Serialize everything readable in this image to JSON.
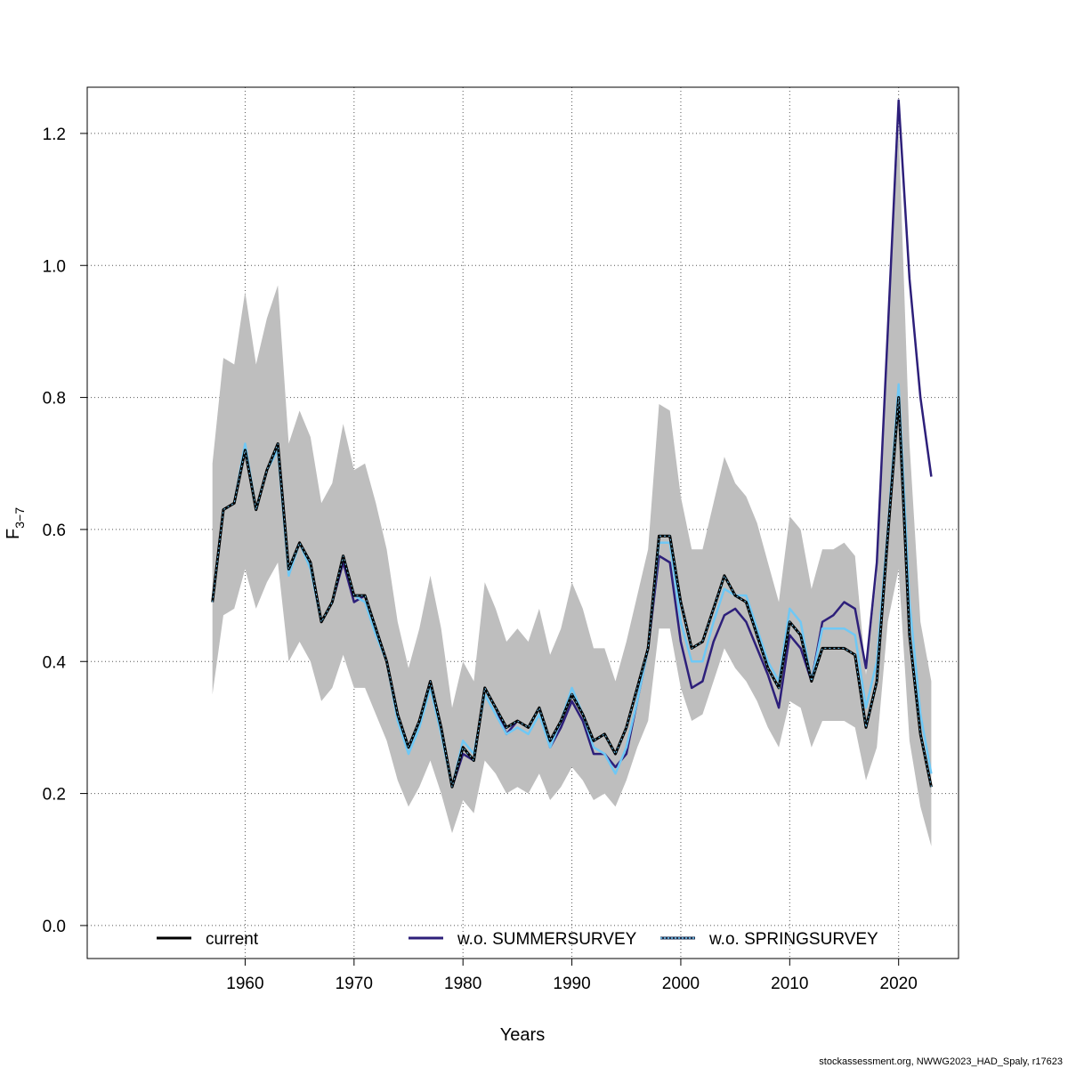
{
  "footer": "stockassessment.org, NWWG2023_HAD_Spaly, r17623",
  "chart_data": {
    "type": "line",
    "xlabel": "Years",
    "ylabel": "F",
    "ylabel_subscript": "3−7",
    "xlim": [
      1945.5,
      2025.5
    ],
    "ylim": [
      -0.05,
      1.27
    ],
    "xticks": [
      1960,
      1970,
      1980,
      1990,
      2000,
      2010,
      2020
    ],
    "yticks": [
      0.0,
      0.2,
      0.4,
      0.6,
      0.8,
      1.0,
      1.2
    ],
    "ytick_labels": [
      "0.0",
      "0.2",
      "0.4",
      "0.6",
      "0.8",
      "1.0",
      "1.2"
    ],
    "grid": true,
    "legend_position": "bottom",
    "x": [
      1957,
      1958,
      1959,
      1960,
      1961,
      1962,
      1963,
      1964,
      1965,
      1966,
      1967,
      1968,
      1969,
      1970,
      1971,
      1972,
      1973,
      1974,
      1975,
      1976,
      1977,
      1978,
      1979,
      1980,
      1981,
      1982,
      1983,
      1984,
      1985,
      1986,
      1987,
      1988,
      1989,
      1990,
      1991,
      1992,
      1993,
      1994,
      1995,
      1996,
      1997,
      1998,
      1999,
      2000,
      2001,
      2002,
      2003,
      2004,
      2005,
      2006,
      2007,
      2008,
      2009,
      2010,
      2011,
      2012,
      2013,
      2014,
      2015,
      2016,
      2017,
      2018,
      2019,
      2020,
      2021,
      2022,
      2023
    ],
    "band": {
      "upper": [
        0.7,
        0.86,
        0.85,
        0.96,
        0.85,
        0.92,
        0.97,
        0.73,
        0.78,
        0.74,
        0.64,
        0.67,
        0.76,
        0.69,
        0.7,
        0.64,
        0.57,
        0.46,
        0.39,
        0.45,
        0.53,
        0.45,
        0.33,
        0.4,
        0.37,
        0.52,
        0.48,
        0.43,
        0.45,
        0.43,
        0.48,
        0.41,
        0.45,
        0.52,
        0.48,
        0.42,
        0.42,
        0.37,
        0.43,
        0.5,
        0.57,
        0.79,
        0.78,
        0.65,
        0.57,
        0.57,
        0.64,
        0.71,
        0.67,
        0.65,
        0.61,
        0.55,
        0.49,
        0.62,
        0.6,
        0.51,
        0.57,
        0.57,
        0.58,
        0.56,
        0.38,
        0.53,
        0.89,
        1.21,
        0.73,
        0.46,
        0.37
      ],
      "lower": [
        0.35,
        0.47,
        0.48,
        0.54,
        0.48,
        0.52,
        0.55,
        0.4,
        0.43,
        0.4,
        0.34,
        0.36,
        0.41,
        0.36,
        0.36,
        0.32,
        0.28,
        0.22,
        0.18,
        0.21,
        0.25,
        0.2,
        0.14,
        0.19,
        0.17,
        0.25,
        0.23,
        0.2,
        0.21,
        0.2,
        0.23,
        0.19,
        0.21,
        0.24,
        0.22,
        0.19,
        0.2,
        0.18,
        0.22,
        0.27,
        0.31,
        0.45,
        0.45,
        0.36,
        0.31,
        0.32,
        0.37,
        0.42,
        0.39,
        0.37,
        0.34,
        0.3,
        0.27,
        0.34,
        0.33,
        0.27,
        0.31,
        0.31,
        0.31,
        0.3,
        0.22,
        0.27,
        0.46,
        0.54,
        0.28,
        0.18,
        0.12
      ]
    },
    "series": [
      {
        "name": "current",
        "color": "#000000",
        "dash": "solid",
        "values": [
          0.49,
          0.63,
          0.64,
          0.72,
          0.63,
          0.69,
          0.73,
          0.54,
          0.58,
          0.55,
          0.46,
          0.49,
          0.56,
          0.5,
          0.5,
          0.45,
          0.4,
          0.32,
          0.27,
          0.31,
          0.37,
          0.3,
          0.21,
          0.27,
          0.25,
          0.36,
          0.33,
          0.3,
          0.31,
          0.3,
          0.33,
          0.28,
          0.31,
          0.35,
          0.32,
          0.28,
          0.29,
          0.26,
          0.3,
          0.36,
          0.42,
          0.59,
          0.59,
          0.49,
          0.42,
          0.43,
          0.48,
          0.53,
          0.5,
          0.49,
          0.44,
          0.39,
          0.36,
          0.46,
          0.44,
          0.37,
          0.42,
          0.42,
          0.42,
          0.41,
          0.3,
          0.37,
          0.59,
          0.8,
          0.44,
          0.29,
          0.21
        ]
      },
      {
        "name": "w.o. SUMMERSURVEY",
        "color": "#2d1f7a",
        "dash": "solid",
        "values": [
          0.49,
          0.63,
          0.64,
          0.72,
          0.63,
          0.69,
          0.73,
          0.54,
          0.58,
          0.55,
          0.46,
          0.49,
          0.55,
          0.49,
          0.5,
          0.45,
          0.4,
          0.32,
          0.27,
          0.31,
          0.37,
          0.3,
          0.21,
          0.26,
          0.25,
          0.36,
          0.33,
          0.29,
          0.31,
          0.3,
          0.33,
          0.27,
          0.3,
          0.34,
          0.31,
          0.26,
          0.26,
          0.24,
          0.26,
          0.34,
          0.42,
          0.56,
          0.55,
          0.43,
          0.36,
          0.37,
          0.43,
          0.47,
          0.48,
          0.46,
          0.42,
          0.38,
          0.33,
          0.44,
          0.42,
          0.37,
          0.46,
          0.47,
          0.49,
          0.48,
          0.39,
          0.55,
          0.9,
          1.25,
          0.98,
          0.8,
          0.68
        ]
      },
      {
        "name": "w.o. SPRINGSURVEY",
        "color": "#6fc8f5",
        "dash": "dotted",
        "values": [
          0.49,
          0.63,
          0.64,
          0.73,
          0.63,
          0.69,
          0.72,
          0.53,
          0.58,
          0.54,
          0.46,
          0.49,
          0.56,
          0.5,
          0.49,
          0.44,
          0.4,
          0.31,
          0.26,
          0.3,
          0.36,
          0.29,
          0.21,
          0.28,
          0.26,
          0.35,
          0.32,
          0.29,
          0.3,
          0.29,
          0.32,
          0.27,
          0.31,
          0.36,
          0.32,
          0.27,
          0.26,
          0.23,
          0.27,
          0.34,
          0.42,
          0.58,
          0.58,
          0.46,
          0.4,
          0.4,
          0.46,
          0.51,
          0.5,
          0.5,
          0.45,
          0.4,
          0.37,
          0.48,
          0.46,
          0.37,
          0.45,
          0.45,
          0.45,
          0.44,
          0.33,
          0.4,
          0.6,
          0.82,
          0.49,
          0.32,
          0.23
        ]
      }
    ]
  }
}
